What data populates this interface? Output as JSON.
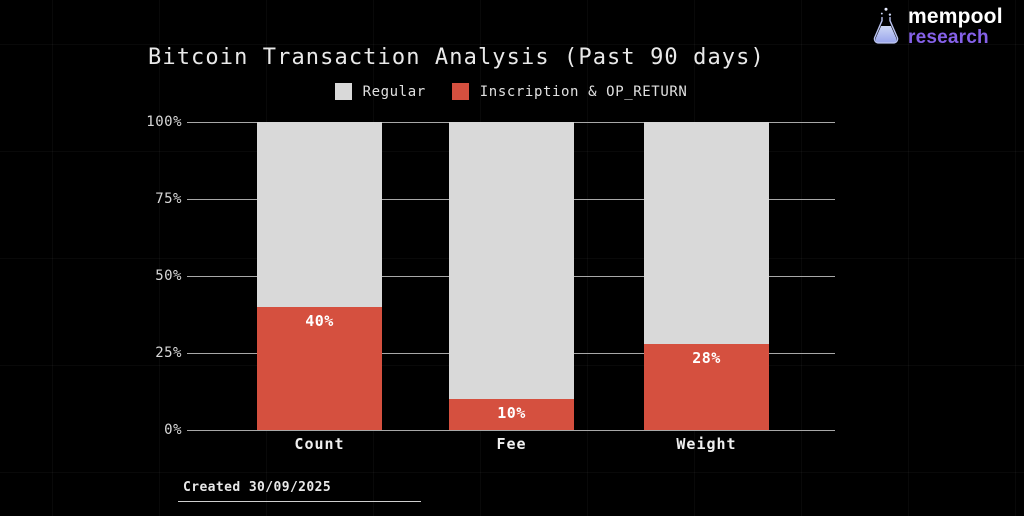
{
  "logo": {
    "brand": "mempool",
    "sub": "research",
    "brand_color": "#ffffff",
    "sub_color": "#8561e8",
    "icon": "flask-icon"
  },
  "chart_data": {
    "type": "bar",
    "stacked": true,
    "orientation": "vertical",
    "title": "Bitcoin Transaction Analysis (Past 90 days)",
    "categories": [
      "Count",
      "Fee",
      "Weight"
    ],
    "series": [
      {
        "name": "Regular",
        "color": "#d9d9d9",
        "values": [
          60,
          90,
          72
        ]
      },
      {
        "name": "Inscription & OP_RETURN",
        "color": "#d5503f",
        "values": [
          40,
          10,
          28
        ]
      }
    ],
    "value_labels": {
      "series": "Inscription & OP_RETURN",
      "labels": [
        "40%",
        "10%",
        "28%"
      ]
    },
    "y_ticks": [
      {
        "value": 100,
        "label": "100%"
      },
      {
        "value": 75,
        "label": "75%"
      },
      {
        "value": 50,
        "label": "50%"
      },
      {
        "value": 25,
        "label": "25%"
      },
      {
        "value": 0,
        "label": "0%"
      }
    ],
    "ylim": [
      0,
      100
    ],
    "grid": true,
    "legend_position": "top-center",
    "background": "#000000"
  },
  "footer": {
    "created_label": "Created 30/09/2025"
  }
}
